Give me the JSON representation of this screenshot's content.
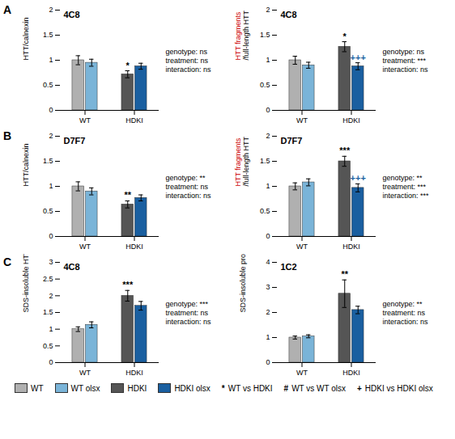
{
  "chart_data": [
    {
      "type": "bar",
      "panel": "A",
      "title": "4C8",
      "ylabel": "HTT/calnexin",
      "subtitle": "genotype: ns\ntreatment: ns\ninteraction: ns",
      "categories": [
        "WT",
        "HDKI"
      ],
      "series": [
        {
          "name": "WT",
          "color": "#b0b0b0",
          "values": [
            1.0,
            null
          ],
          "errors": [
            0.09,
            null
          ]
        },
        {
          "name": "WT olsx",
          "color": "#7ab4d8",
          "values": [
            0.95,
            null
          ],
          "errors": [
            0.07,
            null
          ]
        },
        {
          "name": "HDKI",
          "color": "#555555",
          "values": [
            null,
            0.72
          ],
          "errors": [
            null,
            0.07
          ]
        },
        {
          "name": "HDKI olsx",
          "color": "#1a5fa0",
          "values": [
            null,
            0.88
          ],
          "errors": [
            null,
            0.06
          ]
        }
      ],
      "annotations": [
        {
          "series": "HDKI",
          "category": "HDKI",
          "text": "*"
        }
      ],
      "ylim": [
        0,
        2
      ],
      "yticks": [
        0,
        0.5,
        1,
        1.5,
        2
      ]
    },
    {
      "type": "bar",
      "panel": "A",
      "title": "4C8",
      "ylabel": [
        {
          "text": "HTT fragments",
          "color": "#cc0000"
        },
        {
          "text": "/full-length HTT",
          "color": "black"
        }
      ],
      "subtitle": "genotype: ns\ntreatment: ***\ninteraction: ns",
      "categories": [
        "WT",
        "HDKI"
      ],
      "series": [
        {
          "name": "WT",
          "color": "#b0b0b0",
          "values": [
            1.0,
            null
          ],
          "errors": [
            0.08,
            null
          ]
        },
        {
          "name": "WT olsx",
          "color": "#7ab4d8",
          "values": [
            0.9,
            null
          ],
          "errors": [
            0.06,
            null
          ]
        },
        {
          "name": "HDKI",
          "color": "#555555",
          "values": [
            null,
            1.27
          ],
          "errors": [
            null,
            0.1
          ]
        },
        {
          "name": "HDKI olsx",
          "color": "#1a5fa0",
          "values": [
            null,
            0.88
          ],
          "errors": [
            null,
            0.07
          ]
        }
      ],
      "annotations": [
        {
          "series": "HDKI",
          "category": "HDKI",
          "text": "*"
        },
        {
          "series": "HDKI olsx",
          "category": "HDKI",
          "text": "+++",
          "color": "#1a5fa0"
        }
      ],
      "ylim": [
        0,
        2
      ],
      "yticks": [
        0,
        0.5,
        1,
        1.5,
        2
      ]
    },
    {
      "type": "bar",
      "panel": "B",
      "title": "D7F7",
      "ylabel": "HTT/calnexin",
      "subtitle": "genotype: **\ntreatment: ns\ninteraction: ns",
      "categories": [
        "WT",
        "HDKI"
      ],
      "series": [
        {
          "name": "WT",
          "color": "#b0b0b0",
          "values": [
            1.0,
            null
          ],
          "errors": [
            0.09,
            null
          ]
        },
        {
          "name": "WT olsx",
          "color": "#7ab4d8",
          "values": [
            0.9,
            null
          ],
          "errors": [
            0.07,
            null
          ]
        },
        {
          "name": "HDKI",
          "color": "#555555",
          "values": [
            null,
            0.64
          ],
          "errors": [
            null,
            0.07
          ]
        },
        {
          "name": "HDKI olsx",
          "color": "#1a5fa0",
          "values": [
            null,
            0.77
          ],
          "errors": [
            null,
            0.06
          ]
        }
      ],
      "annotations": [
        {
          "series": "HDKI",
          "category": "HDKI",
          "text": "**"
        }
      ],
      "ylim": [
        0,
        2
      ],
      "yticks": [
        0,
        0.5,
        1,
        1.5,
        2
      ]
    },
    {
      "type": "bar",
      "panel": "B",
      "title": "D7F7",
      "ylabel": [
        {
          "text": "HTT fragments",
          "color": "#cc0000"
        },
        {
          "text": "/full-length HTT",
          "color": "black"
        }
      ],
      "subtitle": "genotype: **\ntreatment: ***\ninteraction: ***",
      "categories": [
        "WT",
        "HDKI"
      ],
      "series": [
        {
          "name": "WT",
          "color": "#b0b0b0",
          "values": [
            1.0,
            null
          ],
          "errors": [
            0.07,
            null
          ]
        },
        {
          "name": "WT olsx",
          "color": "#7ab4d8",
          "values": [
            1.08,
            null
          ],
          "errors": [
            0.07,
            null
          ]
        },
        {
          "name": "HDKI",
          "color": "#555555",
          "values": [
            null,
            1.5
          ],
          "errors": [
            null,
            0.1
          ]
        },
        {
          "name": "HDKI olsx",
          "color": "#1a5fa0",
          "values": [
            null,
            0.97
          ],
          "errors": [
            null,
            0.08
          ]
        }
      ],
      "annotations": [
        {
          "series": "HDKI",
          "category": "HDKI",
          "text": "***"
        },
        {
          "series": "HDKI olsx",
          "category": "HDKI",
          "text": "+++",
          "color": "#1a5fa0"
        }
      ],
      "ylim": [
        0,
        2
      ],
      "yticks": [
        0,
        0.5,
        1,
        1.5,
        2
      ]
    },
    {
      "type": "bar",
      "panel": "C",
      "title": "4C8",
      "ylabel": "SDS-insoluble HTT",
      "subtitle": "genotype: ***\ntreatment: ns\ninteraction: ns",
      "categories": [
        "WT",
        "HDKI"
      ],
      "series": [
        {
          "name": "WT",
          "color": "#b0b0b0",
          "values": [
            1.0,
            null
          ],
          "errors": [
            0.07,
            null
          ]
        },
        {
          "name": "WT olsx",
          "color": "#7ab4d8",
          "values": [
            1.13,
            null
          ],
          "errors": [
            0.09,
            null
          ]
        },
        {
          "name": "HDKI",
          "color": "#555555",
          "values": [
            null,
            2.0
          ],
          "errors": [
            null,
            0.16
          ]
        },
        {
          "name": "HDKI olsx",
          "color": "#1a5fa0",
          "values": [
            null,
            1.7
          ],
          "errors": [
            null,
            0.13
          ]
        }
      ],
      "annotations": [
        {
          "series": "HDKI",
          "category": "HDKI",
          "text": "***"
        }
      ],
      "ylim": [
        0,
        3
      ],
      "yticks": [
        0,
        0.5,
        1,
        1.5,
        2,
        2.5,
        3
      ]
    },
    {
      "type": "bar",
      "panel": "C",
      "title": "1C2",
      "ylabel": "SDS-insoluble protein",
      "subtitle": "genotype: **\ntreatment: ns\ninteraction: ns",
      "categories": [
        "WT",
        "HDKI"
      ],
      "series": [
        {
          "name": "WT",
          "color": "#b0b0b0",
          "values": [
            1.0,
            null
          ],
          "errors": [
            0.06,
            null
          ]
        },
        {
          "name": "WT olsx",
          "color": "#7ab4d8",
          "values": [
            1.05,
            null
          ],
          "errors": [
            0.06,
            null
          ]
        },
        {
          "name": "HDKI",
          "color": "#555555",
          "values": [
            null,
            2.75
          ],
          "errors": [
            null,
            0.55
          ]
        },
        {
          "name": "HDKI olsx",
          "color": "#1a5fa0",
          "values": [
            null,
            2.1
          ],
          "errors": [
            null,
            0.15
          ]
        }
      ],
      "annotations": [
        {
          "series": "HDKI",
          "category": "HDKI",
          "text": "**"
        }
      ],
      "ylim": [
        0,
        4
      ],
      "yticks": [
        0,
        1,
        2,
        3,
        4
      ]
    }
  ],
  "legend_notes": [
    {
      "symbol": "*",
      "text": "WT vs HDKI"
    },
    {
      "symbol": "#",
      "text": "WT vs WT olsx"
    },
    {
      "symbol": "+",
      "text": "HDKI vs HDKI olsx"
    }
  ]
}
